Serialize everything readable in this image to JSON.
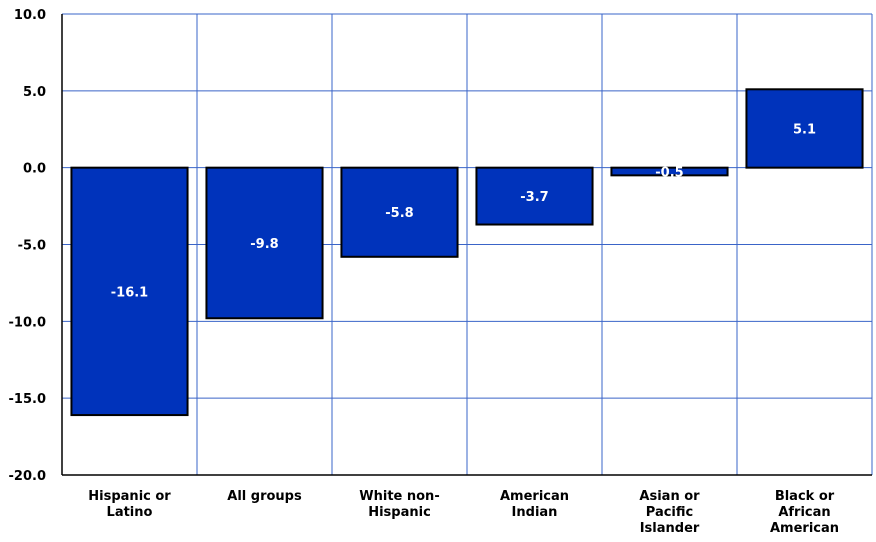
{
  "chart_data": {
    "type": "bar",
    "title": "",
    "xlabel": "",
    "ylabel": "",
    "categories": [
      [
        "Hispanic or",
        "Latino"
      ],
      [
        "All groups"
      ],
      [
        "White non-",
        "Hispanic"
      ],
      [
        "American",
        "Indian"
      ],
      [
        "Asian or",
        "Pacific",
        "Islander"
      ],
      [
        "Black or",
        "African",
        "American"
      ]
    ],
    "values": [
      -16.1,
      -9.8,
      -5.8,
      -3.7,
      -0.5,
      5.1
    ],
    "value_labels": [
      "-16.1",
      "-9.8",
      "-5.8",
      "-3.7",
      "-0.5",
      "5.1"
    ],
    "ylim": [
      -20,
      10
    ],
    "yticks": [
      10,
      5,
      0,
      -5,
      -10,
      -15,
      -20
    ],
    "ytick_labels": [
      "10.0",
      "5.0",
      "0.0",
      "-5.0",
      "-10.0",
      "-15.0",
      "-20.0"
    ],
    "grid": true,
    "legend": "none",
    "colors": {
      "bar_fill": "#0033bb",
      "bar_border": "#000000",
      "grid": "#3a64c8",
      "axis": "#000000"
    }
  }
}
